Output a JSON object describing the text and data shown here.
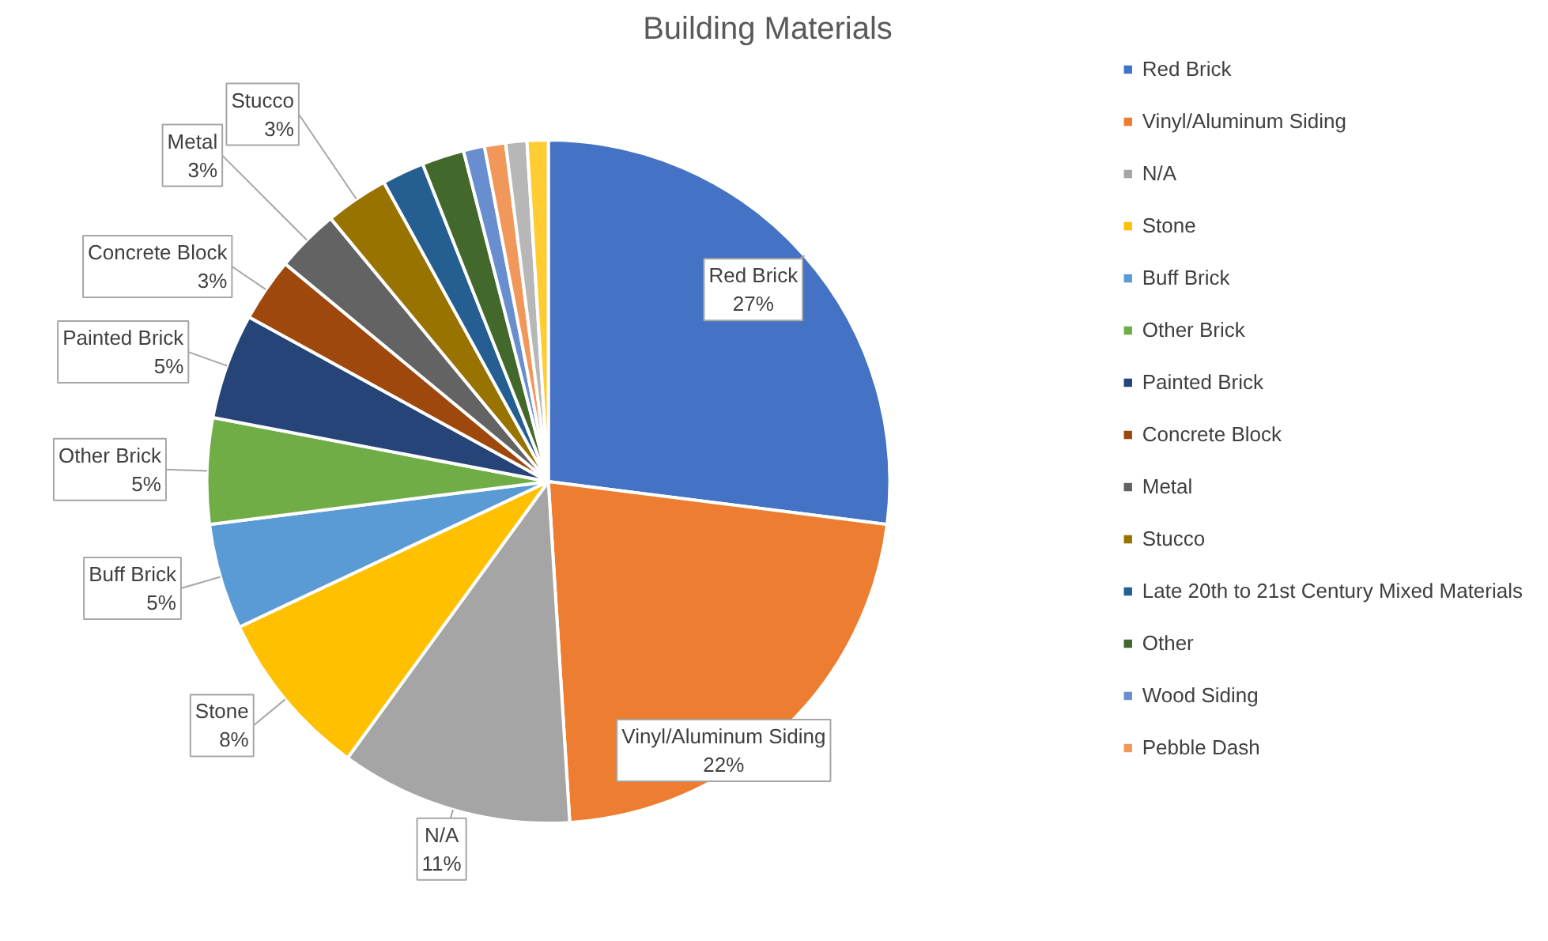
{
  "chart_data": {
    "type": "pie",
    "title": "Building Materials",
    "categories": [
      "Red Brick",
      "Vinyl/Aluminum Siding",
      "N/A",
      "Stone",
      "Buff Brick",
      "Other Brick",
      "Painted Brick",
      "Concrete Block",
      "Metal",
      "Stucco",
      "Late 20th to 21st Century Mixed Materials",
      "Other",
      "Wood Siding",
      "Pebble Dash",
      null,
      null
    ],
    "values": [
      27,
      22,
      11,
      8,
      5,
      5,
      5,
      3,
      3,
      3,
      2,
      2,
      1,
      1,
      1,
      1
    ],
    "value_labels": [
      "27%",
      "22%",
      "11%",
      "8%",
      "5%",
      "5%",
      "5%",
      "3%",
      "3%",
      "3%",
      null,
      null,
      null,
      null,
      null,
      null
    ],
    "colors": [
      "#4472c4",
      "#ed7d31",
      "#a5a5a5",
      "#ffc000",
      "#5b9bd5",
      "#70ad47",
      "#264478",
      "#9e480e",
      "#636363",
      "#997300",
      "#255e91",
      "#43682b",
      "#698ed0",
      "#f1975a",
      "#b7b7b7",
      "#ffcd33"
    ],
    "legend": "right"
  }
}
